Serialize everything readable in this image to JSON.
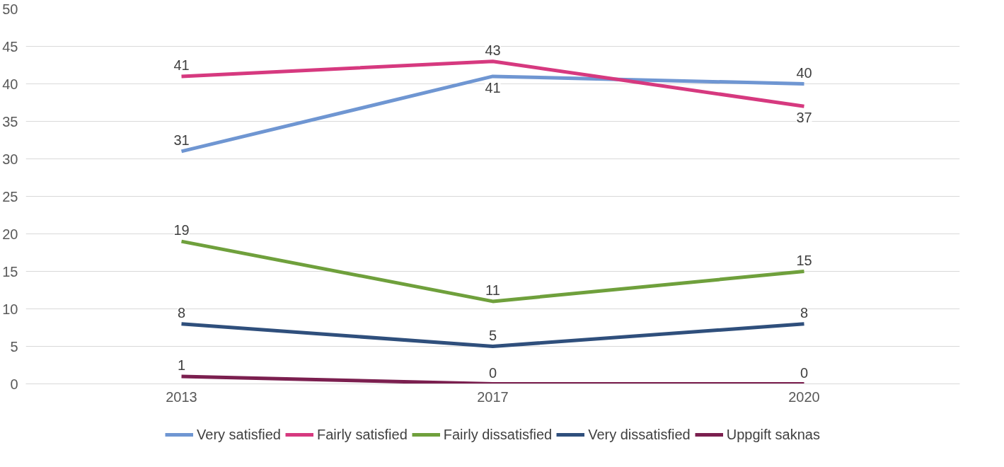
{
  "chart_data": {
    "type": "line",
    "categories": [
      "2013",
      "2017",
      "2020"
    ],
    "series": [
      {
        "name": "Very satisfied",
        "color": "#6f96d2",
        "values": [
          31,
          41,
          40
        ]
      },
      {
        "name": "Fairly satisfied",
        "color": "#d6397f",
        "values": [
          41,
          43,
          37
        ]
      },
      {
        "name": "Fairly dissatisfied",
        "color": "#6fa03c",
        "values": [
          19,
          11,
          15
        ]
      },
      {
        "name": "Very dissatisfied",
        "color": "#2f4f7c",
        "values": [
          8,
          5,
          8
        ]
      },
      {
        "name": "Uppgift saknas",
        "color": "#7b1f4f",
        "values": [
          1,
          0,
          0
        ]
      }
    ],
    "ylim": [
      0,
      50
    ],
    "yticks": [
      0,
      5,
      10,
      15,
      20,
      25,
      30,
      35,
      40,
      45,
      50
    ],
    "grid": "y",
    "legend": "bottom",
    "data_labels": true,
    "marker": "none",
    "line_style": "solid"
  }
}
